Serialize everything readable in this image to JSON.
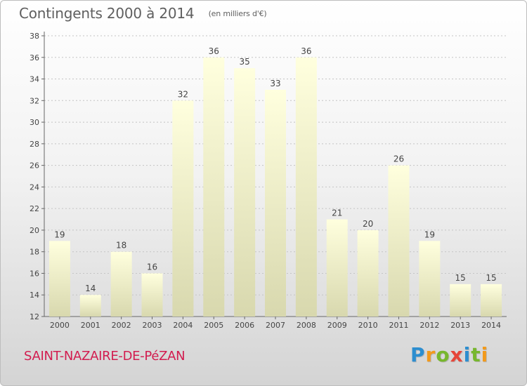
{
  "header": {
    "title": "Contingents 2000 à 2014",
    "subtitle": "(en milliers d'€)"
  },
  "footer": {
    "place": "SAINT-NAZAIRE-DE-PéZAN",
    "logo_letters": [
      "P",
      "r",
      "o",
      "x",
      "i",
      "t",
      "i"
    ]
  },
  "colors": {
    "bar_top": "#ffffde",
    "bar_bottom": "#d8d8ae",
    "place": "#d21c4f"
  },
  "chart_data": {
    "type": "bar",
    "categories": [
      "2000",
      "2001",
      "2002",
      "2003",
      "2004",
      "2005",
      "2006",
      "2007",
      "2008",
      "2009",
      "2010",
      "2011",
      "2012",
      "2013",
      "2014"
    ],
    "values": [
      19,
      14,
      18,
      16,
      32,
      36,
      35,
      33,
      36,
      21,
      20,
      26,
      19,
      15,
      15
    ],
    "ylim": [
      12,
      38
    ],
    "yticks": [
      12,
      14,
      16,
      18,
      20,
      22,
      24,
      26,
      28,
      30,
      32,
      34,
      36,
      38
    ],
    "grid": true,
    "title": "Contingents 2000 à 2014",
    "subtitle": "(en milliers d'€)",
    "xlabel": "",
    "ylabel": ""
  }
}
